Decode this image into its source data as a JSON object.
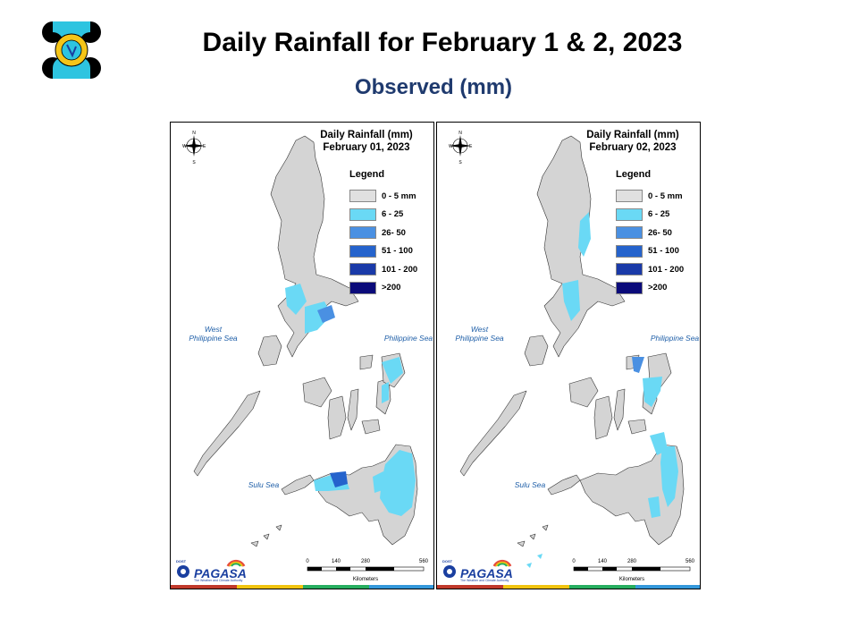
{
  "header": {
    "title": "Daily Rainfall for February 1 & 2, 2023",
    "subtitle": "Observed (mm)"
  },
  "legend": {
    "heading": "Legend",
    "classes": [
      {
        "label": "0 - 5 mm",
        "color": "#e0e0e0"
      },
      {
        "label": "6 - 25",
        "color": "#6ad9f5"
      },
      {
        "label": "26- 50",
        "color": "#4a90e2"
      },
      {
        "label": "51 - 100",
        "color": "#2563cc"
      },
      {
        "label": "101 - 200",
        "color": "#1a3aa8"
      },
      {
        "label": ">200",
        "color": "#0b0b7a"
      }
    ]
  },
  "maps": [
    {
      "title_line1": "Daily Rainfall (mm)",
      "title_line2": "February 01, 2023",
      "heading": "Legend",
      "legend_labels": [
        "0 - 5 mm",
        "6 - 25",
        "26- 50",
        "51 - 100",
        "101 - 200",
        ">200"
      ],
      "sea_west": "West Philippine Sea",
      "sea_east": "Philippine Sea",
      "sea_south": "Sulu Sea",
      "scale_ticks": [
        "0",
        "140",
        "280",
        "560"
      ],
      "scale_unit": "Kilometers",
      "brand_dost": "DOST",
      "brand_name": "PAGASA",
      "brand_tag": "The Weather and Climate Authority"
    },
    {
      "title_line1": "Daily Rainfall (mm)",
      "title_line2": "February 02, 2023",
      "heading": "Legend",
      "legend_labels": [
        "0 - 5 mm",
        "6 - 25",
        "26- 50",
        "51 - 100",
        "101 - 200",
        ">200"
      ],
      "sea_west": "West Philippine Sea",
      "sea_east": "Philippine Sea",
      "sea_south": "Sulu Sea",
      "scale_ticks": [
        "0",
        "140",
        "280",
        "560"
      ],
      "scale_unit": "Kilometers",
      "brand_dost": "DOST",
      "brand_name": "PAGASA",
      "brand_tag": "The Weather and Climate Authority"
    }
  ],
  "compass": {
    "n": "N",
    "s": "S",
    "e": "E",
    "w": "W"
  },
  "stripe_colors": [
    "#c0392b",
    "#f1c40f",
    "#27ae60",
    "#3498db"
  ]
}
